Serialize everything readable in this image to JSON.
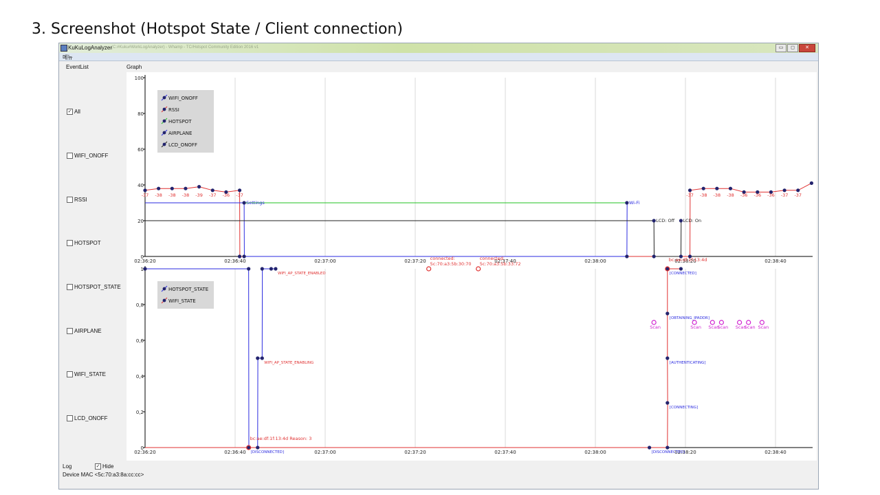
{
  "slide_title": "3. Screenshot (Hotspot State / Client connection)",
  "window": {
    "app_name": "KuKuLogAnalyzer",
    "path": "(C:#Kuku#WorkLogAnalyzer) - Whamp - TC/Hotspot Community Edition 2016 v1",
    "menu": "메뉴",
    "buttons": [
      "▭",
      "◻",
      "✕"
    ]
  },
  "tabs": {
    "event_list": "EventList",
    "graph": "Graph"
  },
  "event_list": [
    {
      "label": "All",
      "checked": true
    },
    {
      "label": "WIFI_ONOFF",
      "checked": false
    },
    {
      "label": "RSSI",
      "checked": false
    },
    {
      "label": "HOTSPOT",
      "checked": false
    },
    {
      "label": "HOTSPOT_STATE",
      "checked": false
    },
    {
      "label": "AIRPLANE",
      "checked": false
    },
    {
      "label": "WIFI_STATE",
      "checked": false
    },
    {
      "label": "LCD_ONOFF",
      "checked": false
    }
  ],
  "log": {
    "label": "Log",
    "hide_label": "Hide",
    "hide_checked": true
  },
  "device_mac": "Device MAC <5c:70:a3:8a:cc:cc>",
  "colors": {
    "rssi": "#e03030",
    "wifi_onoff": "#2a2ae0",
    "hotspot": "#20c020",
    "lcd": "#202020",
    "marker": "#23246e",
    "scan": "#d020d0",
    "grid": "#d8d8d8"
  },
  "chart_data": [
    {
      "type": "line",
      "x_ticks": [
        "02:36:20",
        "02:36:40",
        "02:37:00",
        "02:37:20",
        "02:37:40",
        "02:38:00",
        "02:38:20",
        "02:38:40"
      ],
      "y_ticks": [
        "0",
        "20",
        "40",
        "60",
        "80",
        "100"
      ],
      "ylim": [
        0,
        100
      ],
      "legend": [
        "WIFI_ONOFF",
        "RSSI",
        "HOTSPOT",
        "AIRPLANE",
        "LCD_ONOFF"
      ],
      "series": [
        {
          "name": "RSSI",
          "points": [
            [
              0,
              37
            ],
            [
              3,
              38
            ],
            [
              6,
              38
            ],
            [
              9,
              38
            ],
            [
              12,
              39
            ],
            [
              15,
              37
            ],
            [
              18,
              36
            ],
            [
              21,
              37
            ],
            [
              21.05,
              0
            ],
            [
              121,
              0
            ],
            [
              121.05,
              37
            ],
            [
              124,
              38
            ],
            [
              127,
              38
            ],
            [
              130,
              38
            ],
            [
              133,
              36
            ],
            [
              136,
              36
            ],
            [
              139,
              36
            ],
            [
              142,
              37
            ],
            [
              145,
              37
            ],
            [
              148,
              41
            ]
          ]
        },
        {
          "name": "WIFI_ONOFF",
          "points": [
            [
              0,
              30
            ],
            [
              22,
              30
            ],
            [
              22.05,
              0
            ],
            [
              107,
              0
            ],
            [
              107.05,
              30
            ]
          ]
        },
        {
          "name": "HOTSPOT",
          "points": [
            [
              22,
              30
            ],
            [
              107,
              30
            ]
          ]
        },
        {
          "name": "LCD_ONOFF",
          "points": [
            [
              0,
              20
            ],
            [
              113,
              20
            ],
            [
              113.05,
              0
            ],
            [
              119,
              0
            ],
            [
              119.05,
              20
            ]
          ]
        }
      ],
      "markers": [
        [
          0,
          37
        ],
        [
          3,
          38
        ],
        [
          6,
          38
        ],
        [
          9,
          38
        ],
        [
          12,
          39
        ],
        [
          15,
          37
        ],
        [
          18,
          36
        ],
        [
          21,
          37
        ],
        [
          22,
          30
        ],
        [
          107,
          30
        ],
        [
          113,
          20
        ],
        [
          119,
          20
        ],
        [
          121,
          37
        ],
        [
          124,
          38
        ],
        [
          127,
          38
        ],
        [
          130,
          38
        ],
        [
          133,
          36
        ],
        [
          136,
          36
        ],
        [
          139,
          36
        ],
        [
          142,
          37
        ],
        [
          145,
          37
        ],
        [
          148,
          41
        ],
        [
          21,
          0
        ],
        [
          22,
          0
        ],
        [
          107,
          0
        ],
        [
          113,
          0
        ],
        [
          119,
          0
        ],
        [
          121,
          0
        ]
      ],
      "value_labels": [
        [
          0,
          "-37"
        ],
        [
          3,
          "-38"
        ],
        [
          6,
          "-38"
        ],
        [
          9,
          "-38"
        ],
        [
          12,
          "-39"
        ],
        [
          15,
          "-37"
        ],
        [
          18,
          "-36"
        ],
        [
          21,
          "-37"
        ],
        [
          121,
          "-37"
        ],
        [
          124,
          "-38"
        ],
        [
          127,
          "-38"
        ],
        [
          130,
          "-38"
        ],
        [
          133,
          "-36"
        ],
        [
          136,
          "-36"
        ],
        [
          139,
          "-36"
        ],
        [
          142,
          "-37"
        ],
        [
          145,
          "-37"
        ]
      ],
      "annotations": [
        [
          22,
          30,
          "Settings"
        ],
        [
          107,
          30,
          "Wi-Fi"
        ],
        [
          113,
          20,
          "LCD: Off"
        ],
        [
          119,
          20,
          "LCD: On"
        ]
      ]
    },
    {
      "type": "line",
      "x_ticks": [
        "02:36:20",
        "02:36:40",
        "02:37:00",
        "02:37:20",
        "02:37:40",
        "02:38:00",
        "02:38:20",
        "02:38:40"
      ],
      "y_ticks": [
        "0",
        "0,2",
        "0,4",
        "0,6",
        "0,8",
        "1"
      ],
      "ylim": [
        0,
        1
      ],
      "legend": [
        "HOTSPOT_STATE",
        "WIFI_STATE"
      ],
      "series": [
        {
          "name": "HOTSPOT_STATE",
          "points": [
            [
              0,
              1
            ],
            [
              23,
              1
            ],
            [
              23.05,
              0
            ],
            [
              25,
              0
            ],
            [
              25.05,
              0.5
            ],
            [
              26,
              0.5
            ],
            [
              26.05,
              1
            ],
            [
              29,
              1
            ]
          ]
        },
        {
          "name": "WIFI_STATE",
          "points": [
            [
              0,
              0
            ],
            [
              23,
              0
            ],
            [
              25,
              0
            ],
            [
              112,
              0
            ],
            [
              116,
              0
            ],
            [
              116.05,
              0.25
            ],
            [
              116,
              0.5
            ],
            [
              116,
              0.75
            ],
            [
              116,
              1
            ],
            [
              119,
              1
            ]
          ]
        }
      ],
      "markers": [
        [
          0,
          1
        ],
        [
          23,
          1
        ],
        [
          25,
          0.5
        ],
        [
          26,
          0.5
        ],
        [
          26,
          1
        ],
        [
          28,
          1
        ],
        [
          29,
          1
        ],
        [
          23,
          0
        ],
        [
          25,
          0
        ],
        [
          112,
          0
        ],
        [
          116,
          0
        ],
        [
          116,
          0.25
        ],
        [
          116,
          0.5
        ],
        [
          116,
          0.75
        ],
        [
          116,
          1
        ],
        [
          119,
          1
        ]
      ],
      "event_markers": [
        [
          23,
          0,
          "bc:ae:df:1f:13:4d Reason: 3"
        ],
        [
          63,
          1,
          "connected: 5c:70:a3:5b:30:70"
        ],
        [
          74,
          1,
          "connected: 5c:70:a3:5b:33:72"
        ],
        [
          116,
          1,
          "bc:ae:df:1f:13:4d"
        ]
      ],
      "annotations": [
        [
          29,
          1,
          "WIFI_AP_STATE_ENABLED"
        ],
        [
          26,
          0.5,
          "WIFI_AP_STATE_ENABLING"
        ],
        [
          23,
          0,
          "[DISCONNECTED]"
        ],
        [
          112,
          0,
          "[DISCONNECTED]"
        ],
        [
          116,
          1,
          "[CONNECTED]"
        ],
        [
          116,
          0.75,
          "[OBTAINING_IPADDR]"
        ],
        [
          116,
          0.5,
          "[AUTHENTICATING]"
        ],
        [
          116,
          0.25,
          "[CONNECTING]"
        ]
      ],
      "scan_points": [
        113,
        122,
        126,
        128,
        132,
        134,
        137
      ],
      "scan_label": "Scan"
    }
  ]
}
